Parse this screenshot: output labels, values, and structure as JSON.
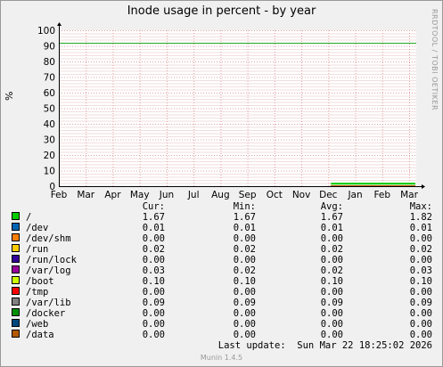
{
  "chart_data": {
    "type": "line",
    "title": "Inode usage in percent - by year",
    "ylabel": "%",
    "side_credit": "RRDTOOL / TOBI OETIKER",
    "ylim": [
      0,
      100
    ],
    "yticks": [
      0,
      10,
      20,
      30,
      40,
      50,
      60,
      70,
      80,
      90,
      100
    ],
    "xticks": [
      "Feb",
      "Mar",
      "Apr",
      "May",
      "Jun",
      "Jul",
      "Aug",
      "Sep",
      "Oct",
      "Nov",
      "Dec",
      "Jan",
      "Feb",
      "Mar"
    ],
    "warning_line": 92,
    "data_start_tick": 10,
    "grid": true,
    "series": [
      {
        "name": "/",
        "color": "#00cc00",
        "cur": "1.67",
        "min": "1.67",
        "avg": "1.67",
        "max": "1.82",
        "value": 1.67
      },
      {
        "name": "/dev",
        "color": "#0066b3",
        "cur": "0.01",
        "min": "0.01",
        "avg": "0.01",
        "max": "0.01",
        "value": 0.01
      },
      {
        "name": "/dev/shm",
        "color": "#ff8000",
        "cur": "0.00",
        "min": "0.00",
        "avg": "0.00",
        "max": "0.00",
        "value": 0.0
      },
      {
        "name": "/run",
        "color": "#ffcc00",
        "cur": "0.02",
        "min": "0.02",
        "avg": "0.02",
        "max": "0.02",
        "value": 0.02
      },
      {
        "name": "/run/lock",
        "color": "#330099",
        "cur": "0.00",
        "min": "0.00",
        "avg": "0.00",
        "max": "0.00",
        "value": 0.0
      },
      {
        "name": "/var/log",
        "color": "#990099",
        "cur": "0.03",
        "min": "0.02",
        "avg": "0.02",
        "max": "0.03",
        "value": 0.03
      },
      {
        "name": "/boot",
        "color": "#ccff00",
        "cur": "0.10",
        "min": "0.10",
        "avg": "0.10",
        "max": "0.10",
        "value": 0.1
      },
      {
        "name": "/tmp",
        "color": "#ff0000",
        "cur": "0.00",
        "min": "0.00",
        "avg": "0.00",
        "max": "0.00",
        "value": 0.0
      },
      {
        "name": "/var/lib",
        "color": "#808080",
        "cur": "0.09",
        "min": "0.09",
        "avg": "0.09",
        "max": "0.09",
        "value": 0.09
      },
      {
        "name": "/docker",
        "color": "#008f00",
        "cur": "0.00",
        "min": "0.00",
        "avg": "0.00",
        "max": "0.00",
        "value": 0.0
      },
      {
        "name": "/web",
        "color": "#00487d",
        "cur": "0.00",
        "min": "0.00",
        "avg": "0.00",
        "max": "0.00",
        "value": 0.0
      },
      {
        "name": "/data",
        "color": "#b35a00",
        "cur": "0.00",
        "min": "0.00",
        "avg": "0.00",
        "max": "0.00",
        "value": 0.0
      }
    ]
  },
  "legend_header": {
    "cur": "Cur:",
    "min": "Min:",
    "avg": "Avg:",
    "max": "Max:"
  },
  "last_update": "Last update:  Sun Mar 22 18:25:02 2026",
  "footer": "Munin 1.4.5"
}
